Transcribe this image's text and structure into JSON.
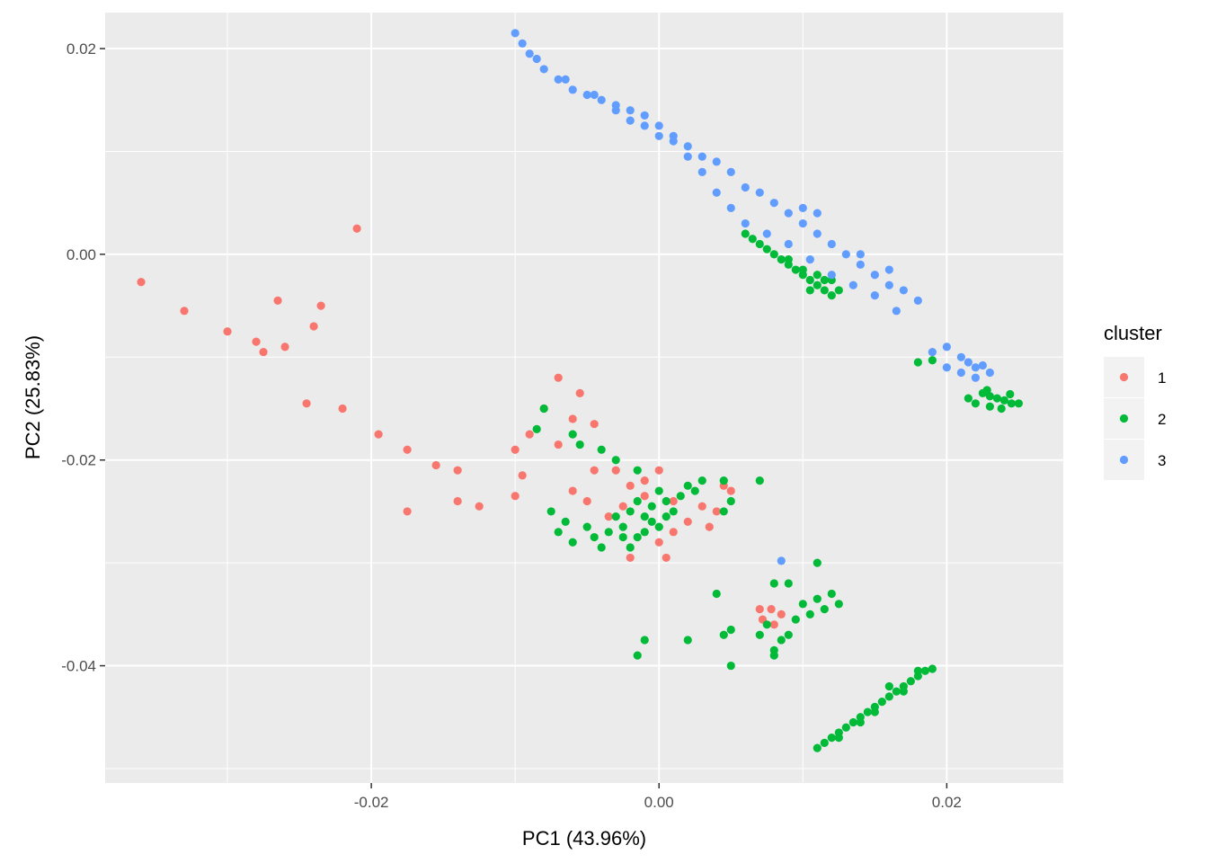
{
  "chart_data": {
    "type": "scatter",
    "title": "",
    "xlabel": "PC1 (43.96%)",
    "ylabel": "PC2 (25.83%)",
    "xlim": [
      -0.0385,
      0.0281
    ],
    "ylim": [
      -0.0514,
      0.0235
    ],
    "x_ticks": [
      {
        "value": -0.02,
        "label": "-0.02"
      },
      {
        "value": 0.0,
        "label": "0.00"
      },
      {
        "value": 0.02,
        "label": "0.02"
      }
    ],
    "y_ticks": [
      {
        "value": 0.02,
        "label": "0.02"
      },
      {
        "value": 0.0,
        "label": "0.00"
      },
      {
        "value": -0.02,
        "label": "-0.02"
      },
      {
        "value": -0.04,
        "label": "-0.04"
      }
    ],
    "grid": true,
    "panel_background": "#ebebeb",
    "legend": {
      "title": "cluster",
      "position": "right",
      "entries": [
        {
          "label": "1",
          "color": "#F8766D"
        },
        {
          "label": "2",
          "color": "#00BA38"
        },
        {
          "label": "3",
          "color": "#619CFF"
        }
      ]
    },
    "series": [
      {
        "name": "1",
        "color": "#F8766D",
        "points": [
          [
            -0.036,
            -0.0027
          ],
          [
            -0.021,
            0.0025
          ],
          [
            -0.033,
            -0.0055
          ],
          [
            -0.03,
            -0.0075
          ],
          [
            -0.0265,
            -0.0045
          ],
          [
            -0.022,
            -0.015
          ],
          [
            -0.0245,
            -0.0145
          ],
          [
            -0.0195,
            -0.0175
          ],
          [
            -0.0175,
            -0.019
          ],
          [
            -0.0155,
            -0.0205
          ],
          [
            -0.0175,
            -0.025
          ],
          [
            -0.014,
            -0.024
          ],
          [
            -0.0125,
            -0.0245
          ],
          [
            -0.014,
            -0.021
          ],
          [
            -0.01,
            -0.019
          ],
          [
            -0.009,
            -0.0175
          ],
          [
            -0.006,
            -0.016
          ],
          [
            -0.0055,
            -0.0135
          ],
          [
            -0.008,
            -0.015
          ],
          [
            -0.007,
            -0.012
          ],
          [
            -0.0045,
            -0.0165
          ],
          [
            -0.007,
            -0.0185
          ],
          [
            -0.0095,
            -0.0215
          ],
          [
            -0.01,
            -0.0235
          ],
          [
            -0.0045,
            -0.021
          ],
          [
            -0.003,
            -0.021
          ],
          [
            -0.002,
            -0.0225
          ],
          [
            -0.001,
            -0.022
          ],
          [
            0.0,
            -0.021
          ],
          [
            -0.001,
            -0.0235
          ],
          [
            -0.0025,
            -0.0245
          ],
          [
            -0.0035,
            -0.0255
          ],
          [
            -0.005,
            -0.024
          ],
          [
            -0.006,
            -0.023
          ],
          [
            0.001,
            -0.027
          ],
          [
            0.002,
            -0.026
          ],
          [
            0.003,
            -0.0245
          ],
          [
            0.004,
            -0.025
          ],
          [
            0.0045,
            -0.0225
          ],
          [
            0.0035,
            -0.0265
          ],
          [
            0.0,
            -0.028
          ],
          [
            0.0005,
            -0.0295
          ],
          [
            -0.002,
            -0.0295
          ],
          [
            0.001,
            -0.024
          ],
          [
            0.005,
            -0.023
          ],
          [
            0.0085,
            -0.035
          ],
          [
            0.0078,
            -0.0345
          ],
          [
            0.0072,
            -0.0355
          ],
          [
            0.007,
            -0.0345
          ],
          [
            0.008,
            -0.036
          ],
          [
            -0.0235,
            -0.005
          ],
          [
            -0.024,
            -0.007
          ],
          [
            -0.026,
            -0.009
          ],
          [
            -0.0275,
            -0.0095
          ],
          [
            -0.028,
            -0.0085
          ]
        ]
      },
      {
        "name": "2",
        "color": "#00BA38",
        "points": [
          [
            -0.008,
            -0.015
          ],
          [
            -0.0085,
            -0.017
          ],
          [
            -0.006,
            -0.0175
          ],
          [
            -0.0055,
            -0.0185
          ],
          [
            -0.004,
            -0.019
          ],
          [
            -0.003,
            -0.02
          ],
          [
            -0.0015,
            -0.021
          ],
          [
            -0.0075,
            -0.025
          ],
          [
            -0.0065,
            -0.026
          ],
          [
            -0.007,
            -0.027
          ],
          [
            -0.006,
            -0.028
          ],
          [
            -0.005,
            -0.0265
          ],
          [
            -0.0045,
            -0.0275
          ],
          [
            -0.004,
            -0.0285
          ],
          [
            -0.0035,
            -0.027
          ],
          [
            -0.003,
            -0.0255
          ],
          [
            -0.0025,
            -0.0265
          ],
          [
            -0.002,
            -0.025
          ],
          [
            -0.0015,
            -0.024
          ],
          [
            -0.001,
            -0.0255
          ],
          [
            -0.0005,
            -0.0245
          ],
          [
            0.0,
            -0.023
          ],
          [
            0.0005,
            -0.024
          ],
          [
            0.001,
            -0.025
          ],
          [
            0.0015,
            -0.0235
          ],
          [
            0.002,
            -0.0225
          ],
          [
            0.0025,
            -0.023
          ],
          [
            0.003,
            -0.022
          ],
          [
            -0.0015,
            -0.0275
          ],
          [
            -0.002,
            -0.0285
          ],
          [
            -0.0025,
            -0.0275
          ],
          [
            -0.001,
            -0.027
          ],
          [
            0.0,
            -0.0265
          ],
          [
            -0.0005,
            -0.026
          ],
          [
            0.0005,
            -0.0255
          ],
          [
            0.0045,
            -0.025
          ],
          [
            0.0045,
            -0.022
          ],
          [
            0.007,
            -0.022
          ],
          [
            0.005,
            -0.024
          ],
          [
            0.004,
            -0.033
          ],
          [
            0.002,
            -0.0375
          ],
          [
            -0.001,
            -0.0375
          ],
          [
            -0.0015,
            -0.039
          ],
          [
            0.0045,
            -0.037
          ],
          [
            0.005,
            -0.0365
          ],
          [
            0.0075,
            -0.036
          ],
          [
            0.007,
            -0.037
          ],
          [
            0.008,
            -0.0385
          ],
          [
            0.0085,
            -0.0375
          ],
          [
            0.009,
            -0.037
          ],
          [
            0.0095,
            -0.0355
          ],
          [
            0.01,
            -0.034
          ],
          [
            0.0105,
            -0.035
          ],
          [
            0.011,
            -0.0335
          ],
          [
            0.0115,
            -0.0345
          ],
          [
            0.012,
            -0.033
          ],
          [
            0.0125,
            -0.034
          ],
          [
            0.011,
            -0.03
          ],
          [
            0.009,
            -0.032
          ],
          [
            0.008,
            -0.032
          ],
          [
            0.008,
            -0.039
          ],
          [
            0.005,
            -0.04
          ],
          [
            0.011,
            -0.048
          ],
          [
            0.0115,
            -0.0475
          ],
          [
            0.012,
            -0.047
          ],
          [
            0.0125,
            -0.0465
          ],
          [
            0.013,
            -0.046
          ],
          [
            0.0135,
            -0.0455
          ],
          [
            0.014,
            -0.045
          ],
          [
            0.0145,
            -0.0445
          ],
          [
            0.015,
            -0.044
          ],
          [
            0.0155,
            -0.0435
          ],
          [
            0.016,
            -0.043
          ],
          [
            0.0165,
            -0.0425
          ],
          [
            0.017,
            -0.042
          ],
          [
            0.0175,
            -0.0415
          ],
          [
            0.018,
            -0.041
          ],
          [
            0.0185,
            -0.0405
          ],
          [
            0.019,
            -0.0403
          ],
          [
            0.016,
            -0.042
          ],
          [
            0.014,
            -0.0455
          ],
          [
            0.0125,
            -0.047
          ],
          [
            0.017,
            -0.0425
          ],
          [
            0.018,
            -0.0405
          ],
          [
            0.015,
            -0.0445
          ],
          [
            0.006,
            0.002
          ],
          [
            0.0065,
            0.0015
          ],
          [
            0.007,
            0.001
          ],
          [
            0.0075,
            0.0005
          ],
          [
            0.008,
            0.0
          ],
          [
            0.0085,
            -0.0005
          ],
          [
            0.009,
            -0.001
          ],
          [
            0.0095,
            -0.0015
          ],
          [
            0.01,
            -0.002
          ],
          [
            0.0105,
            -0.0025
          ],
          [
            0.011,
            -0.003
          ],
          [
            0.0115,
            -0.0035
          ],
          [
            0.012,
            -0.004
          ],
          [
            0.0125,
            -0.0035
          ],
          [
            0.012,
            -0.0025
          ],
          [
            0.011,
            -0.002
          ],
          [
            0.01,
            -0.0015
          ],
          [
            0.009,
            -0.0005
          ],
          [
            0.0105,
            -0.0035
          ],
          [
            0.0115,
            -0.0025
          ],
          [
            0.018,
            -0.0105
          ],
          [
            0.019,
            -0.0103
          ],
          [
            0.0225,
            -0.0135
          ],
          [
            0.023,
            -0.0138
          ],
          [
            0.0235,
            -0.014
          ],
          [
            0.024,
            -0.0142
          ],
          [
            0.0245,
            -0.0145
          ],
          [
            0.023,
            -0.0148
          ],
          [
            0.022,
            -0.0145
          ],
          [
            0.0215,
            -0.014
          ],
          [
            0.025,
            -0.0145
          ],
          [
            0.0238,
            -0.015
          ],
          [
            0.0228,
            -0.0132
          ],
          [
            0.0244,
            -0.0136
          ]
        ]
      },
      {
        "name": "3",
        "color": "#619CFF",
        "points": [
          [
            -0.01,
            0.0215
          ],
          [
            -0.009,
            0.0195
          ],
          [
            -0.008,
            0.018
          ],
          [
            -0.007,
            0.017
          ],
          [
            -0.006,
            0.016
          ],
          [
            -0.005,
            0.0155
          ],
          [
            -0.004,
            0.015
          ],
          [
            -0.003,
            0.0145
          ],
          [
            -0.002,
            0.014
          ],
          [
            -0.001,
            0.0135
          ],
          [
            0.0,
            0.0125
          ],
          [
            0.001,
            0.0115
          ],
          [
            0.002,
            0.0105
          ],
          [
            0.003,
            0.0095
          ],
          [
            0.004,
            0.009
          ],
          [
            0.005,
            0.008
          ],
          [
            0.006,
            0.0065
          ],
          [
            0.007,
            0.006
          ],
          [
            0.008,
            0.005
          ],
          [
            0.009,
            0.004
          ],
          [
            0.01,
            0.003
          ],
          [
            0.011,
            0.002
          ],
          [
            0.012,
            0.001
          ],
          [
            0.013,
            0.0
          ],
          [
            0.014,
            -0.001
          ],
          [
            0.015,
            -0.002
          ],
          [
            0.016,
            -0.003
          ],
          [
            0.017,
            -0.0035
          ],
          [
            0.018,
            -0.0045
          ],
          [
            0.0165,
            -0.0055
          ],
          [
            0.015,
            -0.004
          ],
          [
            0.0135,
            -0.003
          ],
          [
            0.012,
            -0.002
          ],
          [
            0.0105,
            -0.0005
          ],
          [
            0.009,
            0.001
          ],
          [
            0.0075,
            0.002
          ],
          [
            0.006,
            0.003
          ],
          [
            0.005,
            0.0045
          ],
          [
            0.004,
            0.006
          ],
          [
            0.003,
            0.008
          ],
          [
            0.002,
            0.0095
          ],
          [
            0.001,
            0.011
          ],
          [
            0.0,
            0.0115
          ],
          [
            -0.001,
            0.0125
          ],
          [
            -0.002,
            0.013
          ],
          [
            -0.003,
            0.014
          ],
          [
            -0.0045,
            0.0155
          ],
          [
            -0.0065,
            0.017
          ],
          [
            -0.0085,
            0.019
          ],
          [
            -0.0095,
            0.0205
          ],
          [
            0.019,
            -0.0095
          ],
          [
            0.02,
            -0.009
          ],
          [
            0.021,
            -0.01
          ],
          [
            0.022,
            -0.011
          ],
          [
            0.023,
            -0.0115
          ],
          [
            0.022,
            -0.012
          ],
          [
            0.021,
            -0.0115
          ],
          [
            0.02,
            -0.011
          ],
          [
            0.0215,
            -0.0105
          ],
          [
            0.0225,
            -0.0108
          ],
          [
            0.0085,
            -0.0298
          ],
          [
            0.01,
            0.0045
          ],
          [
            0.011,
            0.004
          ],
          [
            0.016,
            -0.0015
          ],
          [
            0.014,
            0.0
          ]
        ]
      }
    ]
  }
}
